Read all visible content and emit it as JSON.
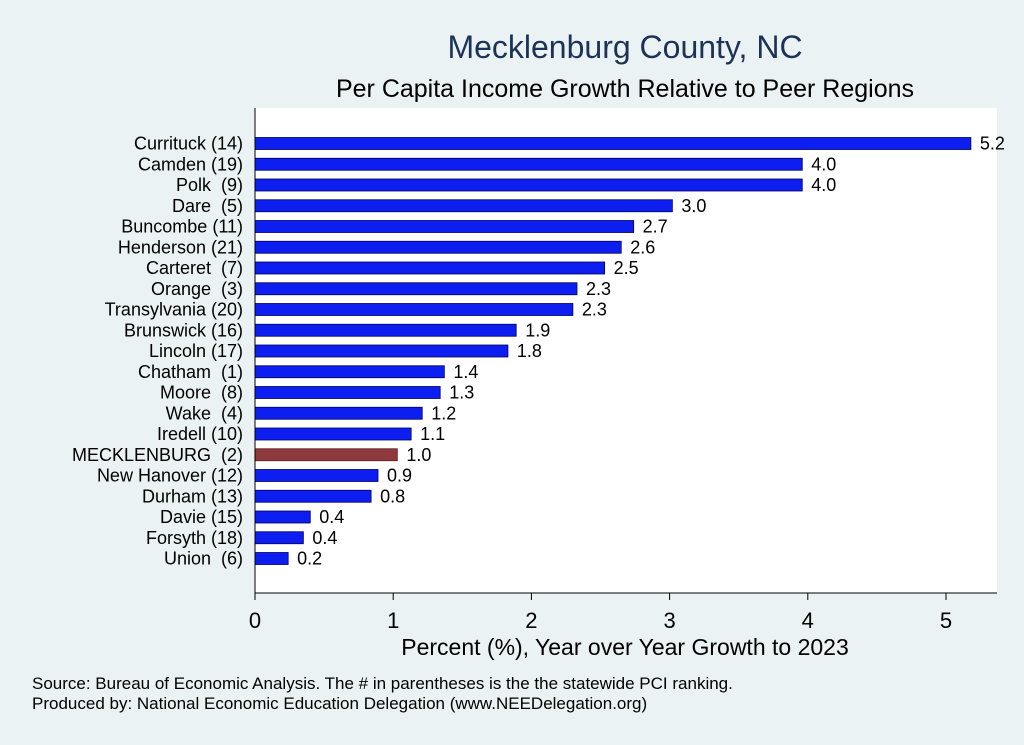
{
  "chart_data": {
    "type": "bar",
    "orientation": "horizontal",
    "title": "Mecklenburg County, NC",
    "subtitle": "Per Capita Income Growth Relative to Peer Regions",
    "xlabel": "Percent (%), Year over Year Growth to 2023",
    "ylabel": "",
    "xlim": [
      0,
      5.35
    ],
    "xticks": [
      0,
      1,
      2,
      3,
      4,
      5
    ],
    "grid": false,
    "categories": [
      "Currituck (14)",
      "Camden (19)",
      "Polk  (9)",
      "Dare  (5)",
      "Buncombe (11)",
      "Henderson (21)",
      "Carteret  (7)",
      "Orange  (3)",
      "Transylvania (20)",
      "Brunswick (16)",
      "Lincoln (17)",
      "Chatham  (1)",
      "Moore  (8)",
      "Wake  (4)",
      "Iredell (10)",
      "MECKLENBURG  (2)",
      "New Hanover (12)",
      "Durham (13)",
      "Davie (15)",
      "Forsyth (18)",
      "Union  (6)"
    ],
    "values": [
      5.18,
      3.96,
      3.96,
      3.02,
      2.74,
      2.65,
      2.53,
      2.33,
      2.3,
      1.89,
      1.83,
      1.37,
      1.34,
      1.21,
      1.13,
      1.03,
      0.89,
      0.84,
      0.4,
      0.35,
      0.24
    ],
    "value_labels": [
      "5.2",
      "4.0",
      "4.0",
      "3.0",
      "2.7",
      "2.6",
      "2.5",
      "2.3",
      "2.3",
      "1.9",
      "1.8",
      "1.4",
      "1.3",
      "1.2",
      "1.1",
      "1.0",
      "0.9",
      "0.8",
      "0.4",
      "0.4",
      "0.2"
    ],
    "highlight_category": "MECKLENBURG  (2)",
    "colors": {
      "bar": "#0d1ff0",
      "highlight": "#8e3a3d",
      "title": "#1c3357",
      "background": "#eaf2f3",
      "plot_background": "#ffffff"
    },
    "notes": [
      "Source: Bureau of Economic Analysis. The # in parentheses is the the statewide PCI ranking.",
      "Produced by: National Economic Education Delegation (www.NEEDelegation.org)"
    ]
  }
}
